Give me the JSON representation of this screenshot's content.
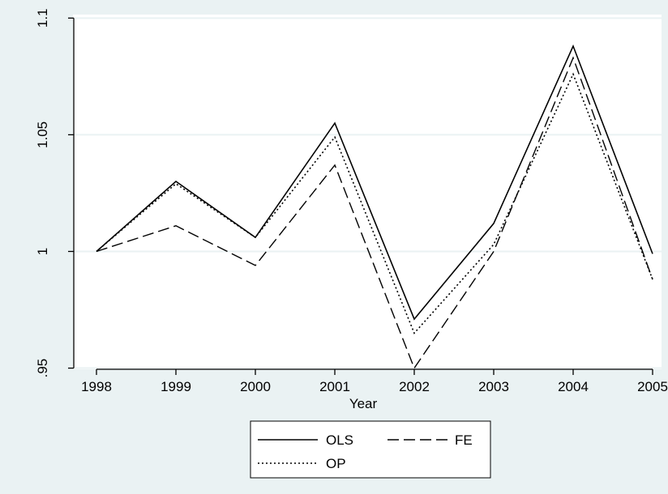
{
  "colors": {
    "outer_background": "#eaf2f3",
    "plot_background": "#ffffff",
    "gridline": "#eaf2f3",
    "line": "#000000"
  },
  "chart_data": {
    "type": "line",
    "title": "",
    "xlabel": "Year",
    "ylabel": "",
    "x": [
      1998,
      1999,
      2000,
      2001,
      2002,
      2003,
      2004,
      2005
    ],
    "xlim": [
      1998,
      2005
    ],
    "ylim": [
      0.9495,
      1.1015
    ],
    "xticks": [
      "1998",
      "1999",
      "2000",
      "2001",
      "2002",
      "2003",
      "2004",
      "2005"
    ],
    "yticks": [
      {
        "value": 0.95,
        "label": ".95"
      },
      {
        "value": 1.0,
        "label": "1"
      },
      {
        "value": 1.05,
        "label": "1.05"
      },
      {
        "value": 1.1,
        "label": "1.1"
      }
    ],
    "grid": true,
    "legend_position": "bottom",
    "series": [
      {
        "name": "OLS",
        "style": "solid",
        "values": [
          1.0,
          1.03,
          1.006,
          1.055,
          0.971,
          1.012,
          1.088,
          0.999
        ]
      },
      {
        "name": "FE",
        "style": "dashed",
        "values": [
          1.0,
          1.011,
          0.994,
          1.037,
          0.95,
          1.0,
          1.083,
          0.988
        ]
      },
      {
        "name": "OP",
        "style": "dotted",
        "values": [
          1.0,
          1.029,
          1.006,
          1.049,
          0.965,
          1.003,
          1.076,
          0.988
        ]
      }
    ]
  }
}
